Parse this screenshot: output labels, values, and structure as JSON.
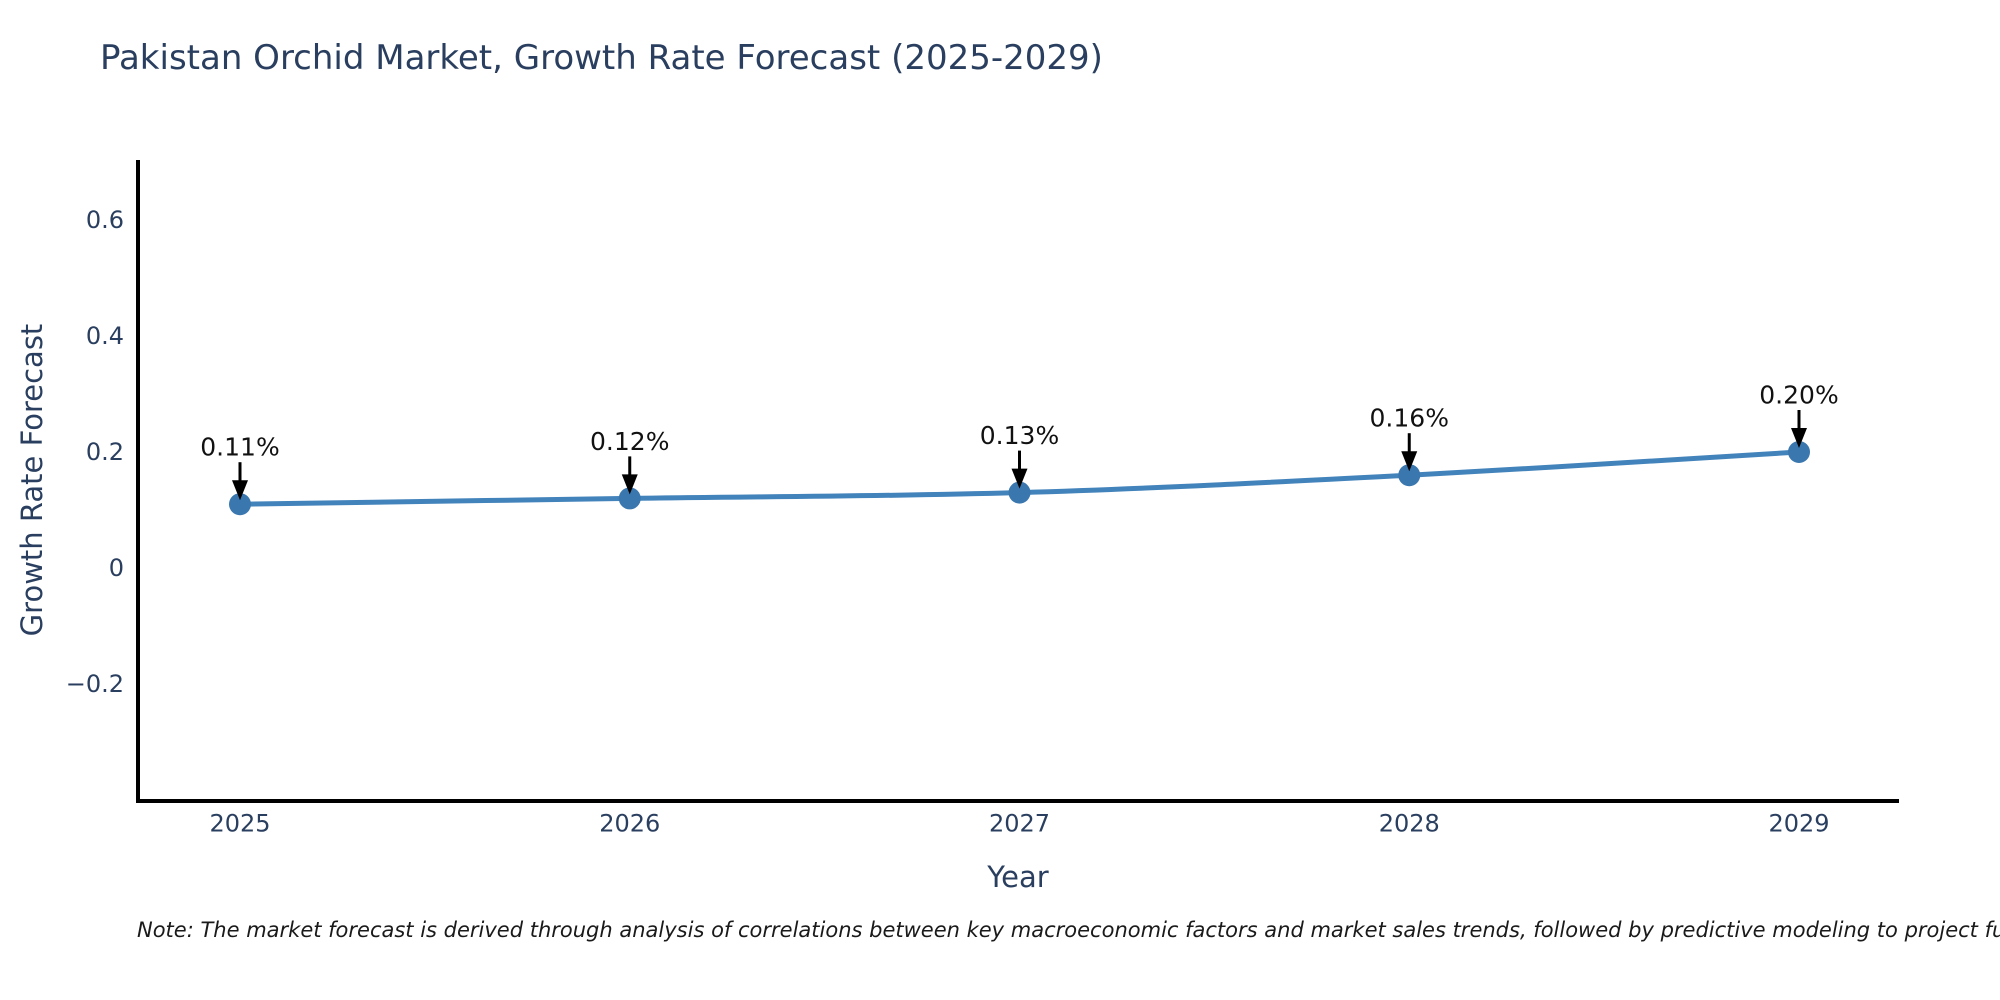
{
  "page": {
    "background": "#ffffff"
  },
  "note": "Note: The market forecast is derived through analysis of correlations between key macroeconomic factors and market sales trends, followed by predictive modeling to project future sales trends.",
  "chart_data": {
    "type": "line",
    "title": "Pakistan Orchid Market, Growth Rate Forecast (2025-2029)",
    "xlabel": "Year",
    "ylabel": "Growth Rate Forecast",
    "x": [
      2025,
      2026,
      2027,
      2028,
      2029
    ],
    "y": [
      0.11,
      0.12,
      0.13,
      0.16,
      0.2
    ],
    "point_labels": [
      "0.11%",
      "0.12%",
      "0.13%",
      "0.16%",
      "0.20%"
    ],
    "x_tick_labels": [
      "2025",
      "2026",
      "2027",
      "2028",
      "2029"
    ],
    "y_ticks": [
      0.6,
      0.4,
      0.2,
      0,
      -0.2
    ],
    "y_tick_labels": [
      "0.6",
      "0.4",
      "0.2",
      "0",
      "−0.2"
    ],
    "ylim": [
      -0.4,
      0.7
    ],
    "grid": false,
    "legend": "none",
    "line_color": "#4383bb",
    "marker_color": "#3a77af",
    "axis_color": "#000000",
    "tick_text_color": "#2a3f5f",
    "annotation_text_color": "#111111",
    "annotation_arrow_color": "#000000"
  }
}
